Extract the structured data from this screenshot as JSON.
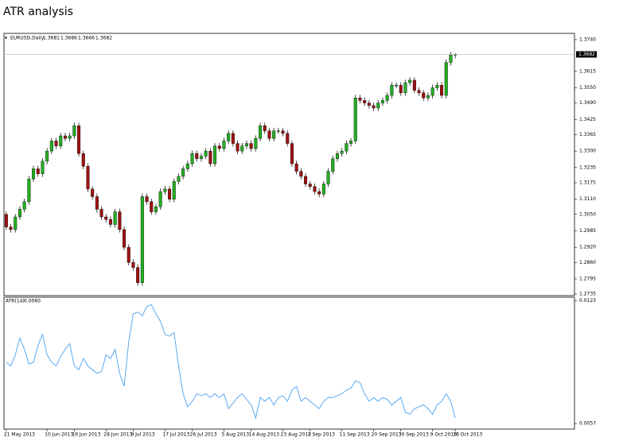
{
  "title": "ATR analysis",
  "chart_data": [
    {
      "type": "candlestick",
      "label": "EURUSD,Daily",
      "up_color": "#22b022",
      "down_color": "#a01010",
      "open": [
        1.305,
        1.3,
        1.299,
        1.304,
        1.307,
        1.31,
        1.319,
        1.323,
        1.321,
        1.326,
        1.33,
        1.334,
        1.332,
        1.336,
        1.335,
        1.336,
        1.34,
        1.329,
        1.324,
        1.315,
        1.312,
        1.307,
        1.304,
        1.303,
        1.301,
        1.306,
        1.299,
        1.292,
        1.286,
        1.284,
        1.278,
        1.312,
        1.31,
        1.306,
        1.308,
        1.314,
        1.315,
        1.311,
        1.318,
        1.32,
        1.323,
        1.325,
        1.329,
        1.327,
        1.328,
        1.33,
        1.325,
        1.332,
        1.331,
        1.334,
        1.337,
        1.333,
        1.33,
        1.332,
        1.333,
        1.331,
        1.335,
        1.34,
        1.338,
        1.335,
        1.338,
        1.338,
        1.337,
        1.333,
        1.325,
        1.322,
        1.32,
        1.317,
        1.316,
        1.314,
        1.313,
        1.317,
        1.322,
        1.327,
        1.329,
        1.33,
        1.333,
        1.334,
        1.351,
        1.35,
        1.349,
        1.348,
        1.347,
        1.349,
        1.35,
        1.352,
        1.356,
        1.356,
        1.353,
        1.357,
        1.358,
        1.354,
        1.353,
        1.351,
        1.352,
        1.355,
        1.356,
        1.352,
        1.365,
        1.3681
      ],
      "high": [
        1.3062,
        1.3012,
        1.3052,
        1.3082,
        1.3112,
        1.3202,
        1.3242,
        1.3242,
        1.3272,
        1.3312,
        1.3352,
        1.3352,
        1.3372,
        1.3372,
        1.3372,
        1.3412,
        1.3412,
        1.3302,
        1.3252,
        1.3162,
        1.3132,
        1.3082,
        1.3052,
        1.3042,
        1.3072,
        1.3072,
        1.3002,
        1.2932,
        1.2872,
        1.2852,
        1.3132,
        1.3132,
        1.3112,
        1.3092,
        1.3152,
        1.3162,
        1.3162,
        1.3192,
        1.3212,
        1.3242,
        1.3262,
        1.3302,
        1.3302,
        1.3292,
        1.3312,
        1.3312,
        1.3332,
        1.3332,
        1.3352,
        1.3382,
        1.3382,
        1.3342,
        1.3332,
        1.3342,
        1.3342,
        1.3362,
        1.3412,
        1.3412,
        1.3392,
        1.3392,
        1.3392,
        1.3392,
        1.3382,
        1.3342,
        1.3262,
        1.3232,
        1.3212,
        1.3182,
        1.3172,
        1.3152,
        1.3182,
        1.3232,
        1.3282,
        1.3302,
        1.3312,
        1.3342,
        1.3352,
        1.3522,
        1.3522,
        1.3512,
        1.3502,
        1.3492,
        1.3502,
        1.3512,
        1.3532,
        1.3572,
        1.3572,
        1.3572,
        1.3582,
        1.3592,
        1.3592,
        1.3552,
        1.3542,
        1.3532,
        1.3562,
        1.3572,
        1.3572,
        1.3662,
        1.3692,
        1.3686
      ],
      "low": [
        1.2988,
        1.2978,
        1.2978,
        1.3028,
        1.3058,
        1.3088,
        1.3178,
        1.3198,
        1.3198,
        1.3248,
        1.3288,
        1.3308,
        1.3308,
        1.3338,
        1.3338,
        1.3348,
        1.3278,
        1.3228,
        1.3138,
        1.3108,
        1.3058,
        1.3028,
        1.3018,
        1.2998,
        1.2998,
        1.2978,
        1.2908,
        1.2848,
        1.2828,
        1.2768,
        1.2768,
        1.3088,
        1.3048,
        1.3048,
        1.3068,
        1.3128,
        1.3098,
        1.3098,
        1.3168,
        1.3188,
        1.3218,
        1.3238,
        1.3258,
        1.3258,
        1.3268,
        1.3238,
        1.3238,
        1.3298,
        1.3298,
        1.3328,
        1.3318,
        1.3288,
        1.3288,
        1.3308,
        1.3298,
        1.3298,
        1.3338,
        1.3368,
        1.3338,
        1.3338,
        1.3368,
        1.3358,
        1.3318,
        1.3238,
        1.3208,
        1.3188,
        1.3158,
        1.3148,
        1.3128,
        1.3118,
        1.3118,
        1.3158,
        1.3208,
        1.3258,
        1.3278,
        1.3288,
        1.3318,
        1.3328,
        1.3488,
        1.3478,
        1.3468,
        1.3458,
        1.3458,
        1.3478,
        1.3488,
        1.3508,
        1.3548,
        1.3518,
        1.3518,
        1.3558,
        1.3528,
        1.3518,
        1.3498,
        1.3498,
        1.3508,
        1.3538,
        1.3508,
        1.3508,
        1.3638,
        1.3666
      ],
      "close": [
        1.3,
        1.299,
        1.304,
        1.307,
        1.31,
        1.319,
        1.323,
        1.321,
        1.326,
        1.33,
        1.334,
        1.332,
        1.336,
        1.335,
        1.336,
        1.34,
        1.329,
        1.324,
        1.315,
        1.312,
        1.307,
        1.304,
        1.303,
        1.301,
        1.306,
        1.299,
        1.292,
        1.286,
        1.284,
        1.278,
        1.312,
        1.31,
        1.306,
        1.308,
        1.314,
        1.315,
        1.311,
        1.318,
        1.32,
        1.323,
        1.325,
        1.329,
        1.327,
        1.328,
        1.33,
        1.325,
        1.332,
        1.331,
        1.334,
        1.337,
        1.333,
        1.33,
        1.332,
        1.333,
        1.331,
        1.335,
        1.34,
        1.338,
        1.335,
        1.338,
        1.338,
        1.337,
        1.333,
        1.325,
        1.322,
        1.32,
        1.317,
        1.316,
        1.314,
        1.313,
        1.317,
        1.322,
        1.327,
        1.329,
        1.33,
        1.333,
        1.334,
        1.351,
        1.35,
        1.349,
        1.348,
        1.347,
        1.349,
        1.35,
        1.352,
        1.356,
        1.356,
        1.353,
        1.357,
        1.358,
        1.354,
        1.353,
        1.351,
        1.352,
        1.355,
        1.356,
        1.352,
        1.365,
        1.368,
        1.3682
      ],
      "ylim": [
        1.2729,
        1.3765
      ],
      "yticks": [
        {
          "value": 1.374,
          "label": "1.3740"
        },
        {
          "value": 1.3615,
          "label": "1.3615"
        },
        {
          "value": 1.355,
          "label": "1.3550"
        },
        {
          "value": 1.349,
          "label": "1.3490"
        },
        {
          "value": 1.3425,
          "label": "1.3425"
        },
        {
          "value": 1.3365,
          "label": "1.3365"
        },
        {
          "value": 1.33,
          "label": "1.3300"
        },
        {
          "value": 1.3235,
          "label": "1.3235"
        },
        {
          "value": 1.3175,
          "label": "1.3175"
        },
        {
          "value": 1.311,
          "label": "1.3110"
        },
        {
          "value": 1.305,
          "label": "1.3050"
        },
        {
          "value": 1.2985,
          "label": "1.2985"
        },
        {
          "value": 1.292,
          "label": "1.2920"
        },
        {
          "value": 1.286,
          "label": "1.2860"
        },
        {
          "value": 1.2795,
          "label": "1.2795"
        },
        {
          "value": 1.2735,
          "label": "1.2735"
        }
      ]
    },
    {
      "type": "line",
      "header_value": "0.0060",
      "categories": [
        "21 May 2013",
        null,
        null,
        null,
        null,
        null,
        null,
        null,
        null,
        "10 Jun 2013",
        null,
        null,
        null,
        null,
        null,
        "19 Jun 2013",
        null,
        null,
        null,
        null,
        null,
        null,
        "28 Jun 2013",
        null,
        null,
        null,
        null,
        null,
        "9 Jul 2013",
        null,
        null,
        null,
        null,
        null,
        null,
        "17 Jul 2013",
        null,
        null,
        null,
        null,
        null,
        "26 Jul 2013",
        null,
        null,
        null,
        null,
        null,
        null,
        "5 Aug 2013",
        null,
        null,
        null,
        null,
        null,
        "14 Aug 2013",
        null,
        null,
        null,
        null,
        null,
        null,
        "23 Aug 2013",
        null,
        null,
        null,
        null,
        null,
        "2 Sep 2013",
        null,
        null,
        null,
        null,
        null,
        null,
        "11 Sep 2013",
        null,
        null,
        null,
        null,
        null,
        null,
        "20 Sep 2013",
        null,
        null,
        null,
        null,
        null,
        "30 Sep 2013",
        null,
        null,
        null,
        null,
        null,
        null,
        "9 Oct 2013",
        null,
        null,
        null,
        null,
        "18 Oct 2013"
      ],
      "series": [
        {
          "name": "ATR(14)",
          "color": "#5aa9f2",
          "values": [
            0.009,
            0.0088,
            0.0094,
            0.0103,
            0.0097,
            0.0089,
            0.009,
            0.0099,
            0.0105,
            0.0094,
            0.009,
            0.0088,
            0.0093,
            0.0097,
            0.01,
            0.0088,
            0.0086,
            0.0092,
            0.0088,
            0.0086,
            0.0084,
            0.0085,
            0.0094,
            0.0092,
            0.0097,
            0.0084,
            0.0077,
            0.0101,
            0.0116,
            0.0117,
            0.0115,
            0.012,
            0.0121,
            0.0116,
            0.0112,
            0.0105,
            0.0104,
            0.0106,
            0.0088,
            0.0073,
            0.0066,
            0.0069,
            0.0073,
            0.0072,
            0.0073,
            0.0071,
            0.0073,
            0.0071,
            0.0073,
            0.0065,
            0.0068,
            0.0071,
            0.0073,
            0.007,
            0.0067,
            0.006,
            0.0071,
            0.0069,
            0.0071,
            0.0067,
            0.0071,
            0.0072,
            0.0069,
            0.0075,
            0.0077,
            0.0069,
            0.0071,
            0.0069,
            0.0067,
            0.0065,
            0.0069,
            0.0071,
            0.0071,
            0.0072,
            0.0073,
            0.0075,
            0.0076,
            0.008,
            0.0079,
            0.0073,
            0.0069,
            0.0071,
            0.0069,
            0.0071,
            0.007,
            0.0067,
            0.0069,
            0.0071,
            0.0063,
            0.0062,
            0.0065,
            0.0066,
            0.0067,
            0.0065,
            0.0062,
            0.0067,
            0.0069,
            0.0073,
            0.0069,
            0.006
          ]
        }
      ],
      "ylim": [
        0.0054,
        0.0125
      ],
      "yticks": [
        0.0123,
        0.0057
      ]
    }
  ]
}
